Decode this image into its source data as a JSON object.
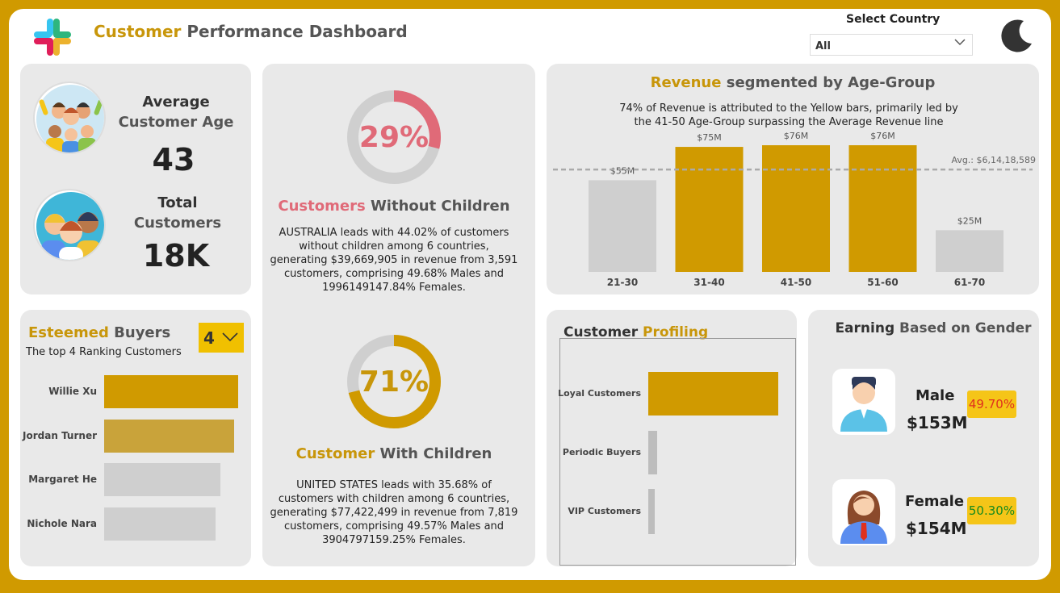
{
  "header": {
    "title_accent": "Customer",
    "title_rest": " Performance Dashboard",
    "select_label": "Select Country",
    "select_value": "All"
  },
  "kpis": {
    "avg_age": {
      "line1": "Average",
      "line2": "Customer Age",
      "value": "43"
    },
    "total_customers": {
      "line1": "Total",
      "line2": "Customers",
      "value": "18K"
    }
  },
  "esteemed": {
    "title_accent": "Esteemed",
    "title_rest": " Buyers",
    "subtitle": "The top 4 Ranking Customers",
    "selector_value": "4",
    "chart_data": {
      "type": "bar",
      "orientation": "horizontal",
      "categories": [
        "Willie Xu",
        "Jordan Turner",
        "Margaret He",
        "Nichole Nara"
      ],
      "values": [
        100,
        97,
        87,
        83
      ],
      "colors": [
        "#D09A00",
        "#C9A33A",
        "#CFCFCF",
        "#CFCFCF"
      ]
    }
  },
  "without_children": {
    "percent": "29%",
    "fraction": 0.29,
    "color": "#E06A78",
    "title_accent": "Customers",
    "title_rest": " Without Children",
    "lines": [
      "AUSTRALIA leads with 44.02% of customers",
      "without children among 6 countries,",
      "generating $39,669,905 in revenue from 3,591",
      "customers, comprising 49.68% Males and",
      "1996149147.84% Females."
    ]
  },
  "with_children": {
    "percent": "71%",
    "fraction": 0.71,
    "color": "#D09A00",
    "title_accent": "Customer",
    "title_rest": " With Children",
    "lines": [
      "UNITED STATES leads with 35.68% of",
      "customers with children among 6 countries,",
      "generating $77,422,499 in revenue from 7,819",
      "customers, comprising 49.57% Males and",
      "3904797159.25% Females."
    ]
  },
  "revenue": {
    "title_accent": "Revenue",
    "title_rest": " segmented by Age-Group",
    "sub1": "74% of Revenue is attributed to the Yellow bars, primarily led by",
    "sub2": "the 41-50 Age-Group surpassing the Average Revenue line",
    "avg_label": "Avg.: $6,14,18,589",
    "chart_data": {
      "type": "bar",
      "categories": [
        "21-30",
        "31-40",
        "41-50",
        "51-60",
        "61-70"
      ],
      "values": [
        55,
        75,
        76,
        76,
        25
      ],
      "labels": [
        "$55M",
        "$75M",
        "$76M",
        "$76M",
        "$25M"
      ],
      "highlight": [
        false,
        true,
        true,
        true,
        false
      ],
      "average": 61.42,
      "ylabel_unit": "M",
      "ylim": [
        0,
        80
      ]
    }
  },
  "profiling": {
    "title_dark": "Customer",
    "title_accent": " Profiling",
    "chart_data": {
      "type": "bar",
      "orientation": "horizontal",
      "categories": [
        "Loyal Customers",
        "Periodic Buyers",
        "VIP Customers"
      ],
      "values": [
        100,
        7,
        5
      ],
      "colors": [
        "#D09A00",
        "#BDBDBD",
        "#BDBDBD"
      ]
    }
  },
  "gender": {
    "title_dark": "Earning",
    "title_accent": " Based on Gender",
    "male": {
      "label": "Male",
      "value": "$153M",
      "pct": "49.70%"
    },
    "female": {
      "label": "Female",
      "value": "$154M",
      "pct": "50.30%"
    }
  },
  "colors": {
    "accent": "#D09A00",
    "card": "#E9E9E9",
    "red": "#E06A78"
  }
}
